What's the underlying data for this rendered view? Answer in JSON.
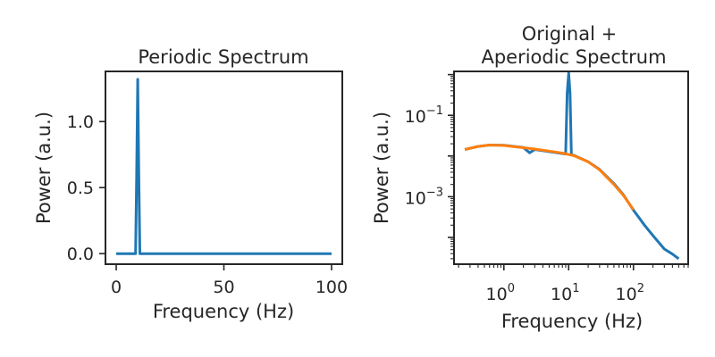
{
  "chart_data": [
    {
      "type": "line",
      "title": "Periodic Spectrum",
      "xlabel": "Frequency (Hz)",
      "ylabel": "Power (a.u.)",
      "xlim": [
        -5,
        105
      ],
      "ylim": [
        -0.08,
        1.38
      ],
      "xticks": [
        0,
        50,
        100
      ],
      "yticks": [
        0.0,
        0.5,
        1.0
      ],
      "xtick_labels": [
        "0",
        "50",
        "100"
      ],
      "ytick_labels": [
        "0.0",
        "0.5",
        "1.0"
      ],
      "series": [
        {
          "color": "#1f77b4",
          "x": [
            0,
            5,
            9.0,
            9.5,
            10.0,
            10.5,
            11.0,
            20,
            40,
            60,
            80,
            100
          ],
          "y": [
            0.0,
            0.0,
            0.0,
            0.6,
            1.32,
            0.6,
            0.0,
            0.0,
            0.0,
            0.0,
            0.0,
            0.0
          ]
        }
      ]
    },
    {
      "type": "line",
      "title": "Original +\nAperiodic Spectrum",
      "title_lines": [
        "Original +",
        "Aperiodic Spectrum"
      ],
      "xlabel": "Frequency (Hz)",
      "ylabel": "Power (a.u.)",
      "xscale": "log",
      "yscale": "log",
      "xlim": [
        0.17,
        700
      ],
      "ylim": [
        2.2e-05,
        1.2
      ],
      "xticks": [
        1,
        10,
        100
      ],
      "yticks": [
        0.001,
        0.1
      ],
      "xtick_labels": [
        {
          "base": "10",
          "exp": "0"
        },
        {
          "base": "10",
          "exp": "1"
        },
        {
          "base": "10",
          "exp": "2"
        }
      ],
      "ytick_labels": [
        {
          "base": "10",
          "exp": "−3"
        },
        {
          "base": "10",
          "exp": "−1"
        }
      ],
      "series": [
        {
          "color": "#1f77b4",
          "x": [
            0.25,
            0.4,
            0.6,
            1.0,
            2.0,
            2.5,
            3.0,
            5.0,
            8.0,
            9.0,
            9.5,
            10.0,
            10.5,
            11.0,
            12.0,
            20,
            30,
            50,
            70,
            100,
            150,
            200,
            300,
            400,
            500
          ],
          "y": [
            0.0145,
            0.0172,
            0.0186,
            0.0183,
            0.0162,
            0.012,
            0.0145,
            0.0128,
            0.0115,
            0.0112,
            0.35,
            1.1,
            0.35,
            0.0107,
            0.0104,
            0.0072,
            0.0047,
            0.0021,
            0.00112,
            0.00047,
            0.000195,
            0.000111,
            5.2e-05,
            3.9e-05,
            3e-05
          ]
        },
        {
          "color": "#ff7f0e",
          "x": [
            0.25,
            0.4,
            0.6,
            1.0,
            2.0,
            3.0,
            5.0,
            8.0,
            12,
            20,
            30,
            50,
            70,
            100
          ],
          "y": [
            0.0145,
            0.0172,
            0.0186,
            0.0182,
            0.016,
            0.0148,
            0.0132,
            0.0118,
            0.0102,
            0.0072,
            0.0046,
            0.002,
            0.00108,
            0.00048
          ]
        }
      ]
    }
  ]
}
